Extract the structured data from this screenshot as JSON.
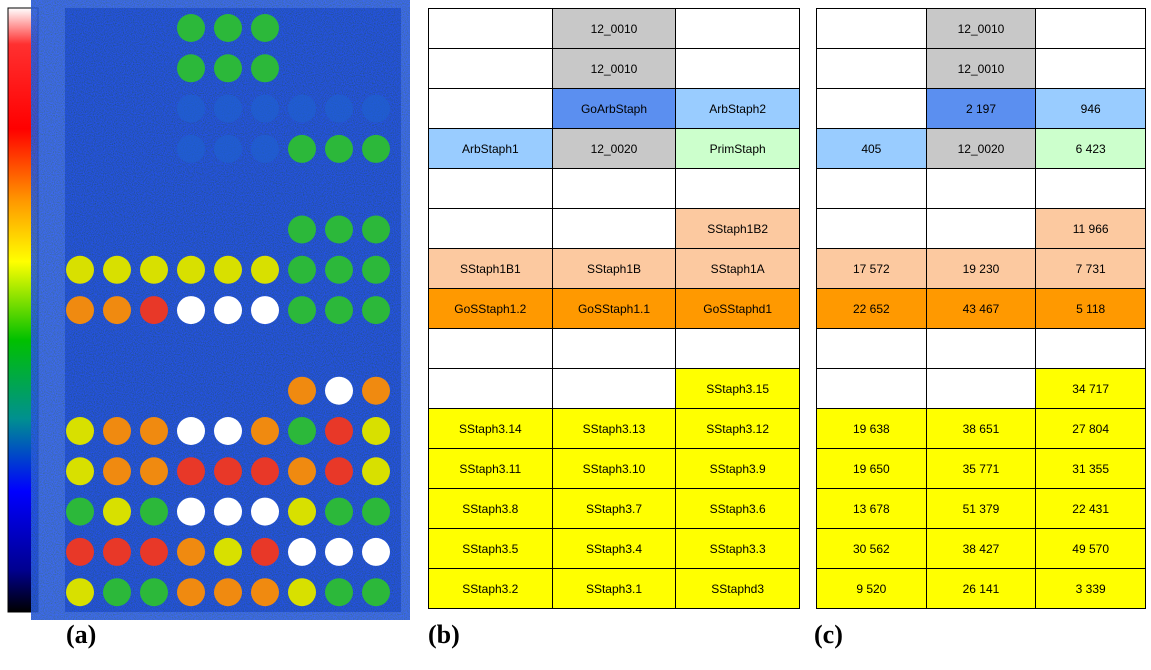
{
  "figure": {
    "panel_labels": [
      "(a)",
      "(b)",
      "(c)"
    ],
    "cell_fills": [
      [
        "#ffffff",
        "#c8c8c8",
        "#ffffff"
      ],
      [
        "#ffffff",
        "#c8c8c8",
        "#ffffff"
      ],
      [
        "#ffffff",
        "#5b8ff0",
        "#99ccff"
      ],
      [
        "#99ccff",
        "#c8c8c8",
        "#ccffcc"
      ],
      [
        "#ffffff",
        "#ffffff",
        "#ffffff"
      ],
      [
        "#ffffff",
        "#ffffff",
        "#fcc9a0"
      ],
      [
        "#fcc9a0",
        "#fcc9a0",
        "#fcc9a0"
      ],
      [
        "#ff9900",
        "#ff9900",
        "#ff9900"
      ],
      [
        "#ffffff",
        "#ffffff",
        "#ffffff"
      ],
      [
        "#ffffff",
        "#ffffff",
        "#ffff00"
      ],
      [
        "#ffff00",
        "#ffff00",
        "#ffff00"
      ],
      [
        "#ffff00",
        "#ffff00",
        "#ffff00"
      ],
      [
        "#ffff00",
        "#ffff00",
        "#ffff00"
      ],
      [
        "#ffff00",
        "#ffff00",
        "#ffff00"
      ],
      [
        "#ffff00",
        "#ffff00",
        "#ffff00"
      ]
    ],
    "table_b": {
      "rows": [
        [
          null,
          "12_0010",
          null
        ],
        [
          null,
          "12_0010",
          null
        ],
        [
          null,
          "GoArbStaph",
          "ArbStaph2"
        ],
        [
          "ArbStaph1",
          "12_0020",
          "PrimStaph"
        ],
        [
          null,
          null,
          null
        ],
        [
          null,
          null,
          "SStaph1B2"
        ],
        [
          "SStaph1B1",
          "SStaph1B",
          "SStaph1A"
        ],
        [
          "GoSStaph1.2",
          "GoSStaph1.1",
          "GoSStaphd1"
        ],
        [
          null,
          null,
          null
        ],
        [
          null,
          null,
          "SStaph3.15"
        ],
        [
          "SStaph3.14",
          "SStaph3.13",
          "SStaph3.12"
        ],
        [
          "SStaph3.11",
          "SStaph3.10",
          "SStaph3.9"
        ],
        [
          "SStaph3.8",
          "SStaph3.7",
          "SStaph3.6"
        ],
        [
          "SStaph3.5",
          "SStaph3.4",
          "SStaph3.3"
        ],
        [
          "SStaph3.2",
          "SStaph3.1",
          "SStaphd3"
        ]
      ]
    },
    "table_c": {
      "rows": [
        [
          null,
          "12_0010",
          null
        ],
        [
          null,
          "12_0010",
          null
        ],
        [
          null,
          "2 197",
          "946"
        ],
        [
          "405",
          "12_0020",
          "6 423"
        ],
        [
          null,
          null,
          null
        ],
        [
          null,
          null,
          "11 966"
        ],
        [
          "17 572",
          "19 230",
          "7 731"
        ],
        [
          "22 652",
          "43 467",
          "5 118"
        ],
        [
          null,
          null,
          null
        ],
        [
          null,
          null,
          "34 717"
        ],
        [
          "19 638",
          "38 651",
          "27 804"
        ],
        [
          "19 650",
          "35 771",
          "31 355"
        ],
        [
          "13 678",
          "51 379",
          "22 431"
        ],
        [
          "30 562",
          "38 427",
          "49 570"
        ],
        [
          "9 520",
          "26 141",
          "3 339"
        ]
      ]
    }
  }
}
